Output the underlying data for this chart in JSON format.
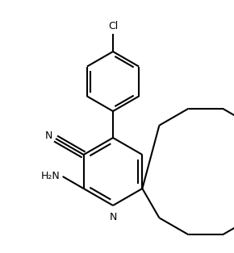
{
  "background_color": "#ffffff",
  "line_color": "#000000",
  "line_width": 1.5,
  "figsize": [
    2.9,
    3.14
  ],
  "dpi": 100,
  "atoms": {
    "N_label": "N",
    "H2N_label": "H₂N",
    "N_nitrile": "N",
    "Cl_label": "Cl"
  },
  "xlim": [
    0,
    290
  ],
  "ylim": [
    0,
    314
  ]
}
